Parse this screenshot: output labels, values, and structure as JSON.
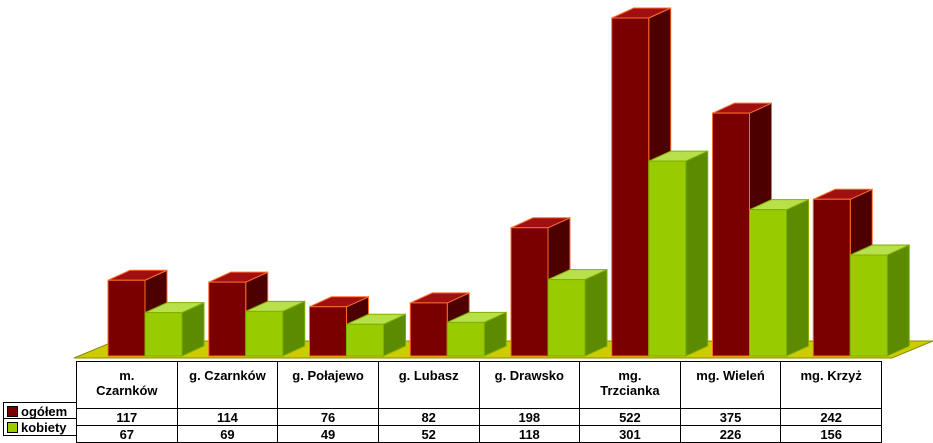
{
  "chart_data": {
    "type": "bar",
    "style": "3d-clustered-column",
    "categories": [
      "m. Czarnków",
      "g. Czarnków",
      "g. Połajewo",
      "g. Lubasz",
      "g. Drawsko",
      "mg. Trzcianka",
      "mg. Wieleń",
      "mg. Krzyż"
    ],
    "series": [
      {
        "name": "ogółem",
        "color": "#7a0000",
        "values": [
          117,
          114,
          76,
          82,
          198,
          522,
          375,
          242
        ]
      },
      {
        "name": "kobiety",
        "color": "#99cc00",
        "values": [
          67,
          69,
          49,
          52,
          118,
          301,
          226,
          156
        ]
      }
    ],
    "title": "",
    "xlabel": "",
    "ylabel": "",
    "ylim": [
      0,
      522
    ],
    "grid": false,
    "legend": "data-table",
    "floor_color": "#cccc00"
  },
  "table": {
    "header_labels": [
      "m.\nCzarnków",
      "g. Czarnków",
      "g. Połajewo",
      "g. Lubasz",
      "g. Drawsko",
      "mg.\nTrzcianka",
      "mg. Wieleń",
      "mg. Krzyż"
    ],
    "row_labels": [
      "ogółem",
      "kobiety"
    ],
    "rows": [
      [
        "117",
        "114",
        "76",
        "82",
        "198",
        "522",
        "375",
        "242"
      ],
      [
        "67",
        "69",
        "49",
        "52",
        "118",
        "301",
        "226",
        "156"
      ]
    ]
  }
}
